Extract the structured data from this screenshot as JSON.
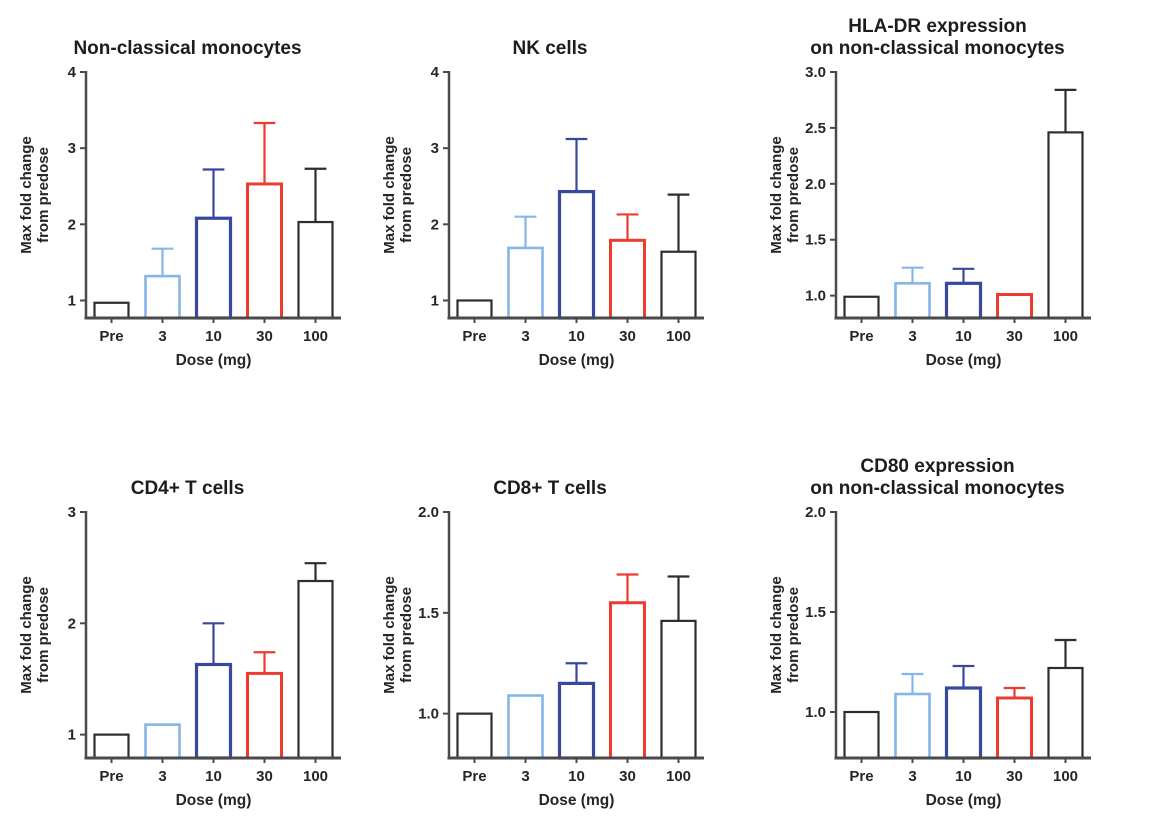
{
  "page": {
    "background": "#ffffff",
    "description": "Figure with six bar charts of max fold change from predose by dose"
  },
  "colors": {
    "black": "#2d2d2d",
    "lightblue": "#85b6e8",
    "darkblue": "#38489e",
    "red": "#ee3b30",
    "axis": "#4a4a4a",
    "text": "#262626"
  },
  "chart_data": [
    {
      "type": "bar",
      "title": "Non-classical monocytes",
      "categories": [
        "Pre",
        "3",
        "10",
        "30",
        "100"
      ],
      "values": [
        0.97,
        1.32,
        2.08,
        2.53,
        2.03
      ],
      "error_tops": [
        null,
        1.68,
        2.72,
        3.33,
        2.73
      ],
      "bar_colors": [
        "black",
        "lightblue",
        "darkblue",
        "red",
        "black"
      ],
      "xlabel": "Dose (mg)",
      "ylabel_lines": [
        "Max fold change",
        "from predose"
      ],
      "ylim": [
        0.77,
        4
      ],
      "yticks": [
        1,
        2,
        3,
        4
      ],
      "ytick_labels": [
        "1",
        "2",
        "3",
        "4"
      ],
      "grid": false,
      "legend": null
    },
    {
      "type": "bar",
      "title": "NK cells",
      "categories": [
        "Pre",
        "3",
        "10",
        "30",
        "100"
      ],
      "values": [
        1.0,
        1.69,
        2.43,
        1.79,
        1.64
      ],
      "error_tops": [
        null,
        2.1,
        3.12,
        2.13,
        2.39
      ],
      "bar_colors": [
        "black",
        "lightblue",
        "darkblue",
        "red",
        "black"
      ],
      "xlabel": "Dose (mg)",
      "ylabel_lines": [
        "Max fold change",
        "from predose"
      ],
      "ylim": [
        0.77,
        4
      ],
      "yticks": [
        1,
        2,
        3,
        4
      ],
      "ytick_labels": [
        "1",
        "2",
        "3",
        "4"
      ],
      "grid": false,
      "legend": null
    },
    {
      "type": "bar",
      "title": "HLA-DR expression\non non-classical monocytes",
      "categories": [
        "Pre",
        "3",
        "10",
        "30",
        "100"
      ],
      "values": [
        0.99,
        1.11,
        1.11,
        1.01,
        2.46
      ],
      "error_tops": [
        null,
        1.25,
        1.24,
        null,
        2.84
      ],
      "bar_colors": [
        "black",
        "lightblue",
        "darkblue",
        "red",
        "black"
      ],
      "xlabel": "Dose (mg)",
      "ylabel_lines": [
        "Max fold change",
        "from predose"
      ],
      "ylim": [
        0.8,
        3.0
      ],
      "yticks": [
        1.0,
        1.5,
        2.0,
        2.5,
        3.0
      ],
      "ytick_labels": [
        "1.0",
        "1.5",
        "2.0",
        "2.5",
        "3.0"
      ],
      "grid": false,
      "legend": null
    },
    {
      "type": "bar",
      "title": "CD4+ T cells",
      "categories": [
        "Pre",
        "3",
        "10",
        "30",
        "100"
      ],
      "values": [
        1.0,
        1.09,
        1.63,
        1.55,
        2.38
      ],
      "error_tops": [
        null,
        null,
        2.0,
        1.74,
        2.54
      ],
      "bar_colors": [
        "black",
        "lightblue",
        "darkblue",
        "red",
        "black"
      ],
      "xlabel": "Dose (mg)",
      "ylabel_lines": [
        "Max fold change",
        "from predose"
      ],
      "ylim": [
        0.79,
        3
      ],
      "yticks": [
        1,
        2,
        3
      ],
      "ytick_labels": [
        "1",
        "2",
        "3"
      ],
      "grid": false,
      "legend": null
    },
    {
      "type": "bar",
      "title": "CD8+ T cells",
      "categories": [
        "Pre",
        "3",
        "10",
        "30",
        "100"
      ],
      "values": [
        1.0,
        1.09,
        1.15,
        1.55,
        1.46
      ],
      "error_tops": [
        null,
        null,
        1.25,
        1.69,
        1.68
      ],
      "bar_colors": [
        "black",
        "lightblue",
        "darkblue",
        "red",
        "black"
      ],
      "xlabel": "Dose (mg)",
      "ylabel_lines": [
        "Max fold change",
        "from predose"
      ],
      "ylim": [
        0.78,
        2.0
      ],
      "yticks": [
        1.0,
        1.5,
        2.0
      ],
      "ytick_labels": [
        "1.0",
        "1.5",
        "2.0"
      ],
      "grid": false,
      "legend": null
    },
    {
      "type": "bar",
      "title": "CD80 expression\non non-classical monocytes",
      "categories": [
        "Pre",
        "3",
        "10",
        "30",
        "100"
      ],
      "values": [
        1.0,
        1.09,
        1.12,
        1.07,
        1.22
      ],
      "error_tops": [
        null,
        1.19,
        1.23,
        1.12,
        1.36
      ],
      "bar_colors": [
        "black",
        "lightblue",
        "darkblue",
        "red",
        "black"
      ],
      "xlabel": "Dose (mg)",
      "ylabel_lines": [
        "Max fold change",
        "from predose"
      ],
      "ylim": [
        0.77,
        2.0
      ],
      "yticks": [
        1.0,
        1.5,
        2.0
      ],
      "ytick_labels": [
        "1.0",
        "1.5",
        "2.0"
      ],
      "grid": false,
      "legend": null
    }
  ]
}
